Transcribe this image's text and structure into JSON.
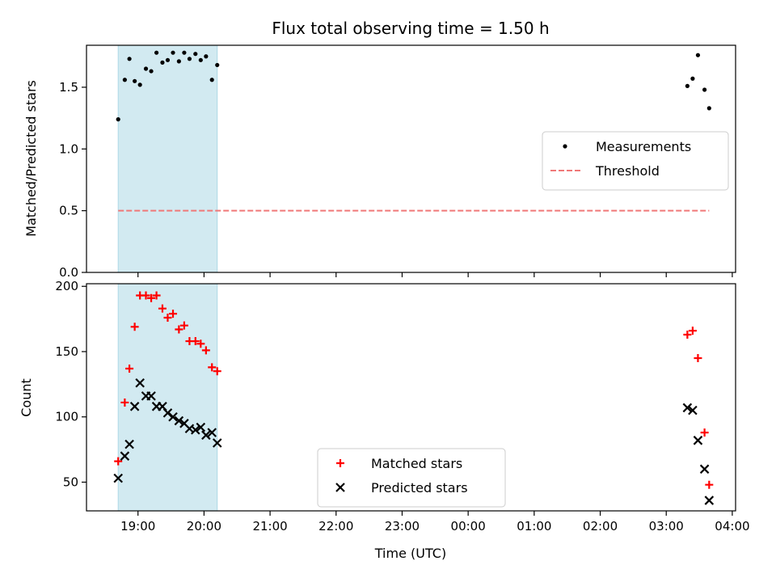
{
  "chart_data": {
    "title": "Flux total observing time = 1.50 h",
    "x_axis": {
      "label": "Time (UTC)",
      "ticks": [
        "19:00",
        "20:00",
        "21:00",
        "22:00",
        "23:00",
        "00:00",
        "01:00",
        "02:00",
        "03:00",
        "04:00"
      ],
      "tick_hours": [
        19,
        20,
        21,
        22,
        23,
        24,
        25,
        26,
        27,
        28
      ],
      "range_hours": [
        18.22,
        28.05
      ]
    },
    "shaded_interval_hours": [
      18.7,
      20.2
    ],
    "shade_color": "#add8e6",
    "panels": [
      {
        "type": "scatter",
        "ylabel": "Matched/Predicted stars",
        "ylim": [
          0,
          1.84
        ],
        "yticks": [
          0.0,
          0.5,
          1.0,
          1.5
        ],
        "ytick_labels": [
          "0.0",
          "0.5",
          "1.0",
          "1.5"
        ],
        "legend_position": "center-right",
        "series": [
          {
            "name": "Measurements",
            "marker": "dot",
            "color": "#000000",
            "x": [
              18.7,
              18.8,
              18.87,
              18.95,
              19.03,
              19.12,
              19.2,
              19.28,
              19.37,
              19.45,
              19.53,
              19.62,
              19.7,
              19.78,
              19.87,
              19.95,
              20.03,
              20.12,
              20.2,
              27.32,
              27.4,
              27.48,
              27.58,
              27.65
            ],
            "y": [
              1.24,
              1.56,
              1.73,
              1.55,
              1.52,
              1.65,
              1.63,
              1.78,
              1.7,
              1.72,
              1.78,
              1.71,
              1.78,
              1.73,
              1.77,
              1.72,
              1.75,
              1.56,
              1.68,
              1.51,
              1.57,
              1.76,
              1.48,
              1.33
            ]
          },
          {
            "name": "Threshold",
            "line": "dashed",
            "color": "#f07878",
            "x": [
              18.7,
              27.65
            ],
            "y": [
              0.5,
              0.5
            ]
          }
        ]
      },
      {
        "type": "scatter",
        "ylabel": "Count",
        "ylim": [
          28,
          202
        ],
        "yticks": [
          50,
          100,
          150,
          200
        ],
        "ytick_labels": [
          "50",
          "100",
          "150",
          "200"
        ],
        "legend_position": "lower-center",
        "series": [
          {
            "name": "Matched stars",
            "marker": "plus",
            "color": "#ff0000",
            "x": [
              18.7,
              18.8,
              18.87,
              18.95,
              19.03,
              19.12,
              19.2,
              19.28,
              19.37,
              19.45,
              19.53,
              19.62,
              19.7,
              19.78,
              19.87,
              19.95,
              20.03,
              20.12,
              20.2,
              27.32,
              27.4,
              27.48,
              27.58,
              27.65
            ],
            "y": [
              66,
              111,
              137,
              169,
              193,
              193,
              191,
              193,
              183,
              176,
              179,
              167,
              170,
              158,
              158,
              156,
              151,
              138,
              135,
              163,
              166,
              145,
              88,
              48
            ]
          },
          {
            "name": "Predicted stars",
            "marker": "x",
            "color": "#000000",
            "x": [
              18.7,
              18.8,
              18.87,
              18.95,
              19.03,
              19.12,
              19.2,
              19.28,
              19.37,
              19.45,
              19.53,
              19.62,
              19.7,
              19.78,
              19.87,
              19.95,
              20.03,
              20.12,
              20.2,
              27.32,
              27.4,
              27.48,
              27.58,
              27.65
            ],
            "y": [
              53,
              70,
              79,
              108,
              126,
              116,
              116,
              108,
              108,
              103,
              100,
              97,
              95,
              91,
              90,
              92,
              86,
              88,
              80,
              107,
              105,
              82,
              60,
              36
            ]
          }
        ]
      }
    ]
  }
}
